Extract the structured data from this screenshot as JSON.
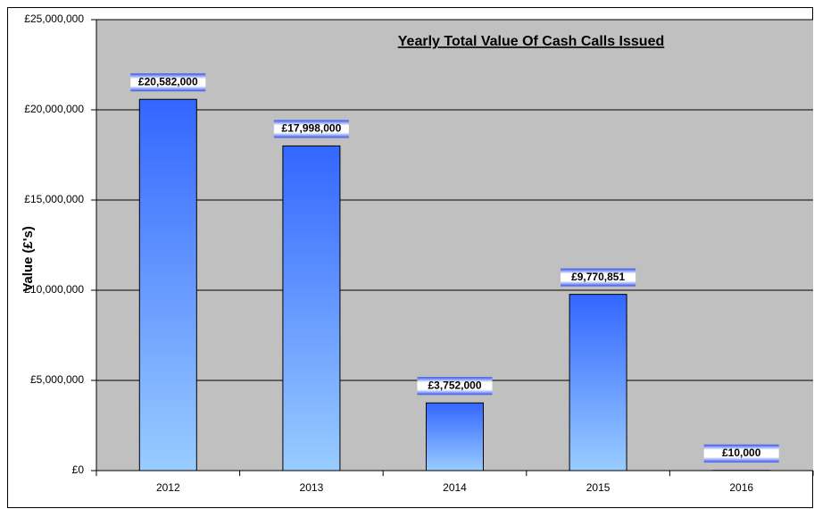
{
  "chart_data": {
    "type": "bar",
    "title": "Yearly Total Value Of Cash Calls Issued",
    "y_label": "Value (£'s)",
    "categories": [
      "2012",
      "2013",
      "2014",
      "2015",
      "2016"
    ],
    "values": [
      20582000,
      17998000,
      3752000,
      9770851,
      10000
    ],
    "value_labels": [
      "£20,582,000",
      "£17,998,000",
      "£3,752,000",
      "£9,770,851",
      "£10,000"
    ],
    "color": "#3366ff",
    "ylim": [
      0,
      25000000
    ],
    "yticks": [
      {
        "value": 0,
        "label": "£0"
      },
      {
        "value": 5000000,
        "label": "£5,000,000"
      },
      {
        "value": 10000000,
        "label": "£10,000,000"
      },
      {
        "value": 15000000,
        "label": "£15,000,000"
      },
      {
        "value": 20000000,
        "label": "£20,000,000"
      },
      {
        "value": 25000000,
        "label": "£25,000,000"
      }
    ],
    "grid": true
  }
}
